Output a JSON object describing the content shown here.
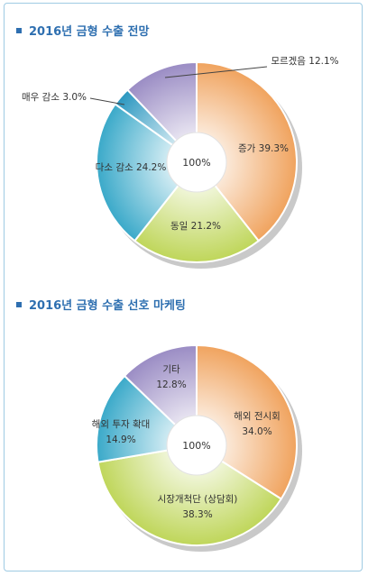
{
  "chart_data": [
    {
      "type": "pie",
      "title": "2016년 금형 수출 전망",
      "center_label": "100%",
      "slices": [
        {
          "label": "증가 39.3%",
          "value": 39.3,
          "color": "#f0a35e"
        },
        {
          "label": "동일 21.2%",
          "value": 21.2,
          "color": "#bfd65a"
        },
        {
          "label": "다소 감소 24.2%",
          "value": 24.2,
          "color": "#3aa9c9"
        },
        {
          "label": "매우 감소 3.0%",
          "value": 3.0,
          "color": "#2b97c0"
        },
        {
          "label": "모르겠음 12.1%",
          "value": 12.1,
          "color": "#9a8cc4"
        }
      ]
    },
    {
      "type": "pie",
      "title": "2016년 금형 수출 선호 마케팅",
      "center_label": "100%",
      "slices": [
        {
          "label": "해외 전시회",
          "pct": "34.0%",
          "value": 34.0,
          "color": "#f0a35e"
        },
        {
          "label": "시장개척단 (상담회)",
          "pct": "38.3%",
          "value": 38.3,
          "color": "#bfd65a"
        },
        {
          "label": "해외 투자 확대",
          "pct": "14.9%",
          "value": 14.9,
          "color": "#3aa9c9"
        },
        {
          "label": "기타",
          "pct": "12.8%",
          "value": 12.8,
          "color": "#9a8cc4"
        }
      ]
    }
  ]
}
